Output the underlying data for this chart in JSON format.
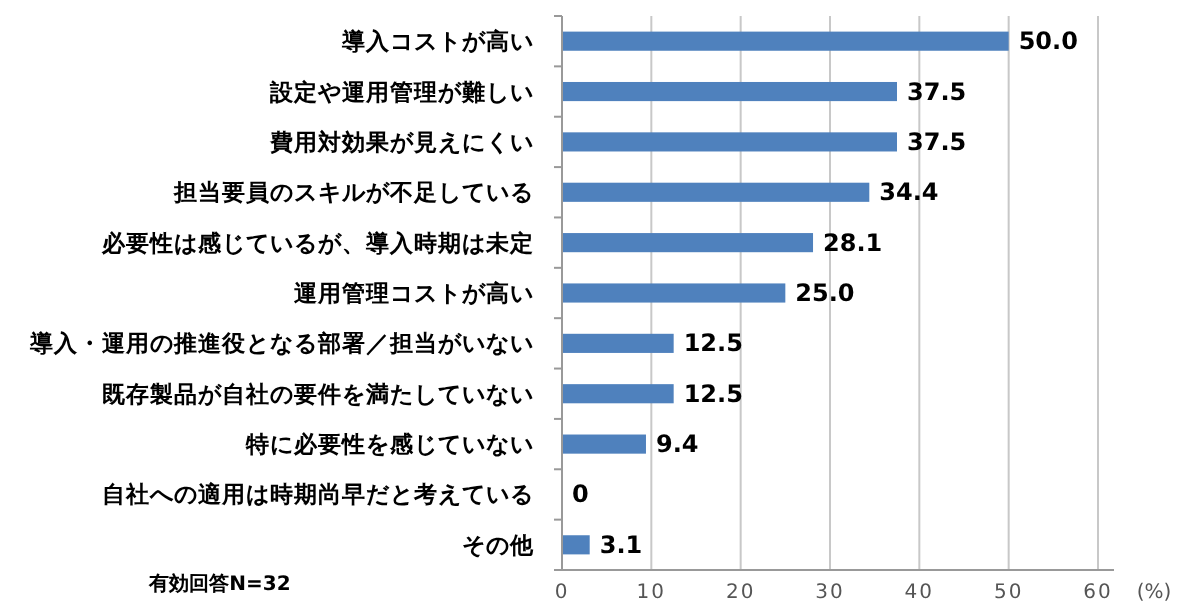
{
  "chart_data": {
    "type": "bar",
    "orientation": "horizontal",
    "categories": [
      "導入コストが高い",
      "設定や運用管理が難しい",
      "費用対効果が見えにくい",
      "担当要員のスキルが不足している",
      "必要性は感じているが、導入時期は未定",
      "運用管理コストが高い",
      "導入・運用の推進役となる部署／担当がいない",
      "既存製品が自社の要件を満たしていない",
      "特に必要性を感じていない",
      "自社への適用は時期尚早だと考えている",
      "その他"
    ],
    "values": [
      50.0,
      37.5,
      37.5,
      34.4,
      28.1,
      25.0,
      12.5,
      12.5,
      9.4,
      0,
      3.1
    ],
    "value_labels": [
      "50.0",
      "37.5",
      "37.5",
      "34.4",
      "28.1",
      "25.0",
      "12.5",
      "12.5",
      "9.4",
      "0",
      "3.1"
    ],
    "color": "#4f81bd",
    "xlim": [
      0,
      60
    ],
    "xticks": [
      0,
      10,
      20,
      30,
      40,
      50,
      60
    ],
    "xlabel": "(%)",
    "grid": "x",
    "annotations": [
      "有効回答N=32"
    ]
  }
}
